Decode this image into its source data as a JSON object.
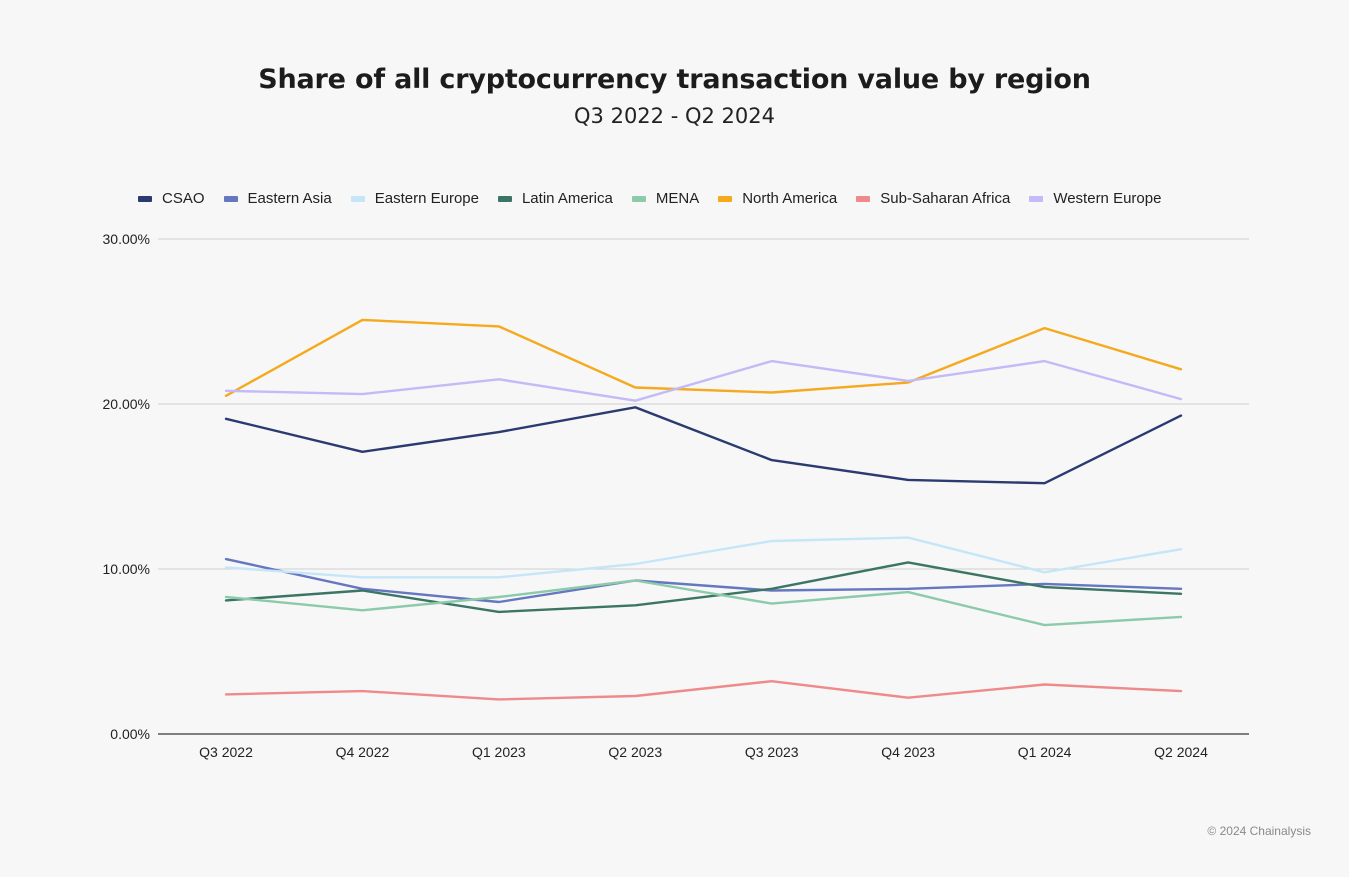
{
  "title": "Share of all cryptocurrency transaction value by region",
  "subtitle": "Q3 2022 - Q2 2024",
  "copyright": "© 2024 Chainalysis",
  "chart_data": {
    "type": "line",
    "title": "Share of all cryptocurrency transaction value by region",
    "subtitle": "Q3 2022 - Q2 2024",
    "xlabel": "",
    "ylabel": "",
    "ylim": [
      0,
      30
    ],
    "y_ticks": [
      0,
      10,
      20,
      30
    ],
    "y_tick_labels": [
      "0.00%",
      "10.00%",
      "20.00%",
      "30.00%"
    ],
    "grid": true,
    "legend_position": "top",
    "categories": [
      "Q3 2022",
      "Q4 2022",
      "Q1 2023",
      "Q2 2023",
      "Q3 2023",
      "Q4 2023",
      "Q1 2024",
      "Q2 2024"
    ],
    "series": [
      {
        "name": "CSAO",
        "color": "#2b3a70",
        "values": [
          19.1,
          17.1,
          18.3,
          19.8,
          16.6,
          15.4,
          15.2,
          19.3
        ]
      },
      {
        "name": "Eastern Asia",
        "color": "#6577c0",
        "values": [
          10.6,
          8.8,
          8.0,
          9.3,
          8.7,
          8.8,
          9.1,
          8.8
        ]
      },
      {
        "name": "Eastern Europe",
        "color": "#c5e6f8",
        "values": [
          10.1,
          9.5,
          9.5,
          10.3,
          11.7,
          11.9,
          9.8,
          11.2
        ]
      },
      {
        "name": "Latin America",
        "color": "#3c7566",
        "values": [
          8.1,
          8.7,
          7.4,
          7.8,
          8.8,
          10.4,
          8.9,
          8.5
        ]
      },
      {
        "name": "MENA",
        "color": "#8ccaaa",
        "values": [
          8.3,
          7.5,
          8.3,
          9.3,
          7.9,
          8.6,
          6.6,
          7.1
        ]
      },
      {
        "name": "North America",
        "color": "#f5a91d",
        "values": [
          20.5,
          25.1,
          24.7,
          21.0,
          20.7,
          21.3,
          24.6,
          22.1
        ]
      },
      {
        "name": "Sub-Saharan Africa",
        "color": "#ee8a8a",
        "values": [
          2.4,
          2.6,
          2.1,
          2.3,
          3.2,
          2.2,
          3.0,
          2.6
        ]
      },
      {
        "name": "Western Europe",
        "color": "#c3baf7",
        "values": [
          20.8,
          20.6,
          21.5,
          20.2,
          22.6,
          21.4,
          22.6,
          20.3
        ]
      }
    ]
  }
}
